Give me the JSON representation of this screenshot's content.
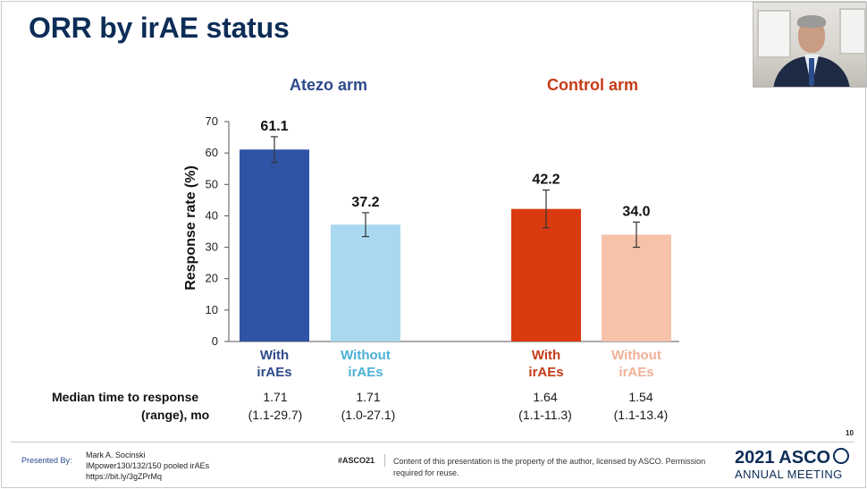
{
  "slide": {
    "title": "ORR by irAE status",
    "page_number": "10"
  },
  "groups": {
    "atezo_label": "Atezo arm",
    "control_label": "Control arm"
  },
  "chart_data": {
    "type": "bar",
    "ylabel": "Response rate (%)",
    "ylim": [
      0,
      70
    ],
    "yticks": [
      0,
      10,
      20,
      30,
      40,
      50,
      60,
      70
    ],
    "grid": false,
    "bars": [
      {
        "label_line1": "With",
        "label_line2": "irAEs",
        "group": "Atezo arm",
        "value": 61.1,
        "value_label": "61.1",
        "err_low": 57.0,
        "err_high": 65.2,
        "color": "#2f54a6",
        "label_color": "#2e4a8a"
      },
      {
        "label_line1": "Without",
        "label_line2": "irAEs",
        "group": "Atezo arm",
        "value": 37.2,
        "value_label": "37.2",
        "err_low": 33.4,
        "err_high": 41.0,
        "color": "#a9d9f0",
        "label_color": "#4bb0d6"
      },
      {
        "label_line1": "With",
        "label_line2": "irAEs",
        "group": "Control arm",
        "value": 42.2,
        "value_label": "42.2",
        "err_low": 36.2,
        "err_high": 48.2,
        "color": "#d93a10",
        "label_color": "#c63a17"
      },
      {
        "label_line1": "Without",
        "label_line2": "irAEs",
        "group": "Control arm",
        "value": 34.0,
        "value_label": "34.0",
        "err_low": 30.0,
        "err_high": 38.0,
        "color": "#f6c2aa",
        "label_color": "#f0b096"
      }
    ]
  },
  "median_time": {
    "label_line1": "Median time to response",
    "label_line2": "(range), mo",
    "values": [
      {
        "median": "1.71",
        "range": "(1.1-29.7)"
      },
      {
        "median": "1.71",
        "range": "(1.0-27.1)"
      },
      {
        "median": "1.64",
        "range": "(1.1-11.3)"
      },
      {
        "median": "1.54",
        "range": "(1.1-13.4)"
      }
    ]
  },
  "footer": {
    "presented_by": "Presented By:",
    "presenter_name": "Mark A. Socinski",
    "presenter_study": "IMpower130/132/150 pooled irAEs",
    "presenter_link": "https://bit.ly/3gZPrMq",
    "hashtag": "#ASCO21",
    "copyright": "Content of this presentation is the property of the author, licensed by ASCO. Permission required for reuse.",
    "logo_year": "2021 ASCO",
    "logo_sub": "ANNUAL MEETING"
  }
}
